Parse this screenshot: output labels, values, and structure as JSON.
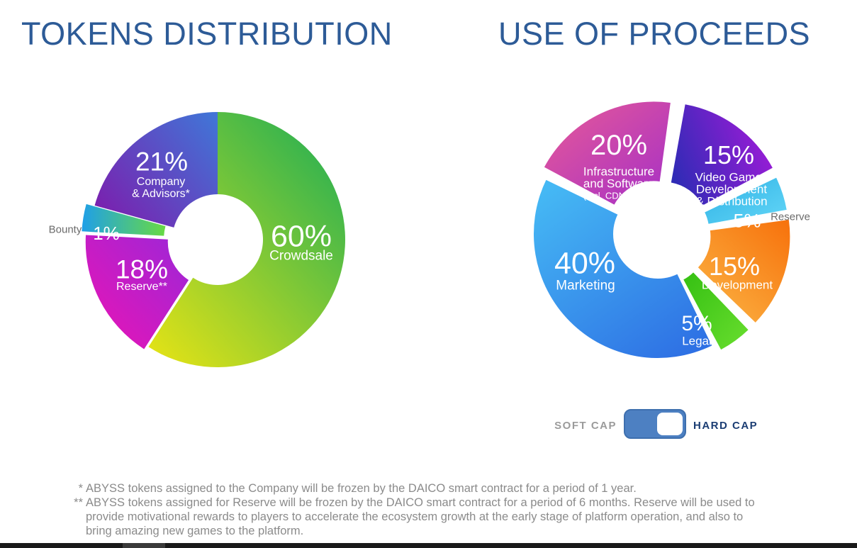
{
  "page": {
    "background": "#ffffff",
    "bottom_bar_color": "#191919",
    "bottom_bar_thumb_color": "#3a3a3a"
  },
  "titles": {
    "left": "TOKENS DISTRIBUTION",
    "right": "USE OF PROCEEDS",
    "color": "#2d5b97"
  },
  "toggle": {
    "soft_label": "SOFT CAP",
    "hard_label": "HARD CAP",
    "selected": "HARD CAP",
    "track_color": "#4d80c2",
    "track_border": "#3e6fae",
    "soft_label_color": "#9b9b9b",
    "hard_label_color": "#1b3d73"
  },
  "footnotes": [
    {
      "marker": "*",
      "text": "ABYSS tokens assigned to the Company will be frozen by the DAICO smart contract for a period of 1 year."
    },
    {
      "marker": "**",
      "text": "ABYSS tokens assigned for Reserve will be frozen by the DAICO smart contract for a period of 6 months. Reserve will be used to provide motivational rewards to players to accelerate the ecosystem growth at the early stage of platform operation, and also to bring amazing new games to the platform."
    }
  ],
  "chart_data": [
    {
      "type": "pie",
      "id": "tokens-distribution",
      "title": "TOKENS DISTRIBUTION",
      "donut": true,
      "legend_position": "inside",
      "start_angle": 0,
      "inner_radius": 64,
      "outer_radius": 180,
      "gap_deg": 0,
      "categories": [
        "Crowdsale",
        "Reserve**",
        "Bounty",
        "Company & Advisors*"
      ],
      "values": [
        60,
        18,
        1,
        21
      ],
      "slices": [
        {
          "id": "crowdsale",
          "label": "Crowdsale",
          "value": 60,
          "explode": 0,
          "visual_weight": 60,
          "gradient": {
            "from": "#e9e414",
            "to": "#27b053",
            "x1": 0,
            "y1": 1,
            "x2": 0.85,
            "y2": 0
          },
          "pct_pos": [
            328,
            206
          ],
          "pct_size": 43,
          "lines": [
            {
              "t": "Crowdsale",
              "s": 19
            }
          ],
          "lines_pos": [
            328,
            233
          ],
          "line_h": 20
        },
        {
          "id": "reserve",
          "label": "Reserve**",
          "value": 18,
          "explode": 7,
          "visual_weight": 17,
          "gradient": {
            "from": "#ec13b4",
            "to": "#9b27d8",
            "x1": 0,
            "y1": 1,
            "x2": 1,
            "y2": 0
          },
          "pct_pos": [
            103,
            252
          ],
          "pct_size": 37,
          "lines": [
            {
              "t": "Reserve**",
              "s": 16
            }
          ],
          "lines_pos": [
            103,
            277
          ],
          "line_h": 18
        },
        {
          "id": "bounty",
          "label": "Bounty",
          "value": 1,
          "explode": 12,
          "visual_weight": 3.5,
          "gradient": {
            "from": "#1f9fe8",
            "to": "#68da43",
            "x1": 0,
            "y1": 0.5,
            "x2": 1,
            "y2": 0.5
          },
          "pct_pos": [
            53,
            201
          ],
          "pct_size": 26,
          "outside": {
            "t": "Bounty",
            "s": 15,
            "pos": [
              -5,
              196
            ],
            "color": "#6b6b6b"
          }
        },
        {
          "id": "company-advisors",
          "label": "Company & Advisors*",
          "value": 21,
          "explode": 0,
          "visual_weight": 21,
          "gradient": {
            "from": "#7b1fae",
            "to": "#4273d6",
            "x1": 0,
            "y1": 0.85,
            "x2": 1,
            "y2": 0.1
          },
          "pct_pos": [
            131,
            100
          ],
          "pct_size": 37,
          "lines": [
            {
              "t": "Company",
              "s": 16
            },
            {
              "t": "& Advisors*",
              "s": 16
            }
          ],
          "lines_pos": [
            130,
            129
          ],
          "line_h": 17
        }
      ]
    },
    {
      "type": "pie",
      "id": "use-of-proceeds",
      "title": "USE OF PROCEEDS",
      "donut": true,
      "legend_position": "inside",
      "start_angle": 9,
      "inner_radius": 63,
      "outer_radius": 175,
      "gap_deg": 1.2,
      "categories": [
        "Video Games Development & Distribution",
        "Reserve",
        "Development",
        "Legal",
        "Marketing",
        "Infrastructure and Software (incl. CDN, DRM)"
      ],
      "values": [
        15,
        5,
        15,
        5,
        40,
        20
      ],
      "slices": [
        {
          "id": "video-games",
          "label": "Video Games Development & Distribution",
          "value": 15,
          "explode": 13,
          "gradient": {
            "from": "#2e2bb5",
            "to": "#a01bd8",
            "x1": 0,
            "y1": 0.7,
            "x2": 1,
            "y2": 0.3
          },
          "pct_pos": [
            310,
            99
          ],
          "pct_size": 36,
          "lines": [
            {
              "t": "Video Games",
              "s": 17
            },
            {
              "t": "Development",
              "s": 17
            },
            {
              "t": "& Distribution",
              "s": 17
            }
          ],
          "lines_pos": [
            314,
            130
          ],
          "line_h": 17
        },
        {
          "id": "reserve",
          "label": "Reserve",
          "value": 5,
          "explode": 10,
          "gradient": {
            "from": "#2fb2e5",
            "to": "#63d6f7",
            "x1": 0,
            "y1": 0,
            "x2": 1,
            "y2": 1
          },
          "pct_pos": [
            336,
            192
          ],
          "pct_size": 27,
          "outside": {
            "t": "Reserve",
            "s": 15,
            "pos": [
              397,
              186
            ],
            "color": "#6b6b6b"
          }
        },
        {
          "id": "development",
          "label": "Development",
          "value": 15,
          "explode": 12,
          "gradient": {
            "from": "#f7740e",
            "to": "#fbb343",
            "x1": 0.9,
            "y1": 0,
            "x2": 0.1,
            "y2": 1
          },
          "pct_pos": [
            318,
            256
          ],
          "pct_size": 36,
          "lines": [
            {
              "t": "Development",
              "s": 17
            }
          ],
          "lines_pos": [
            322,
            282
          ],
          "line_h": 18
        },
        {
          "id": "legal",
          "label": "Legal",
          "value": 5,
          "explode": 11,
          "gradient": {
            "from": "#35c013",
            "to": "#69de2e",
            "x1": 0,
            "y1": 0,
            "x2": 1,
            "y2": 1
          },
          "pct_pos": [
            265,
            337
          ],
          "pct_size": 30,
          "lines": [
            {
              "t": "Legal",
              "s": 17
            }
          ],
          "lines_pos": [
            265,
            361
          ],
          "line_h": 18
        },
        {
          "id": "marketing",
          "label": "Marketing",
          "value": 40,
          "explode": 0,
          "gradient": {
            "from": "#45b8f4",
            "to": "#2e70e4",
            "x1": 0.15,
            "y1": 0,
            "x2": 0.85,
            "y2": 1
          },
          "pct_pos": [
            107,
            252
          ],
          "pct_size": 43,
          "lines": [
            {
              "t": "Marketing",
              "s": 19
            }
          ],
          "lines_pos": [
            108,
            283
          ],
          "line_h": 20
        },
        {
          "id": "infrastructure-software",
          "label": "Infrastructure and Software (incl. CDN, DRM)",
          "value": 20,
          "explode": 13,
          "gradient": {
            "from": "#e85a97",
            "to": "#a52fc7",
            "x1": 0,
            "y1": 0,
            "x2": 1,
            "y2": 1
          },
          "pct_pos": [
            155,
            85
          ],
          "pct_size": 40,
          "lines": [
            {
              "t": "Infrastructure",
              "s": 17
            },
            {
              "t": "and Software",
              "s": 17
            },
            {
              "t": "(incl. CDN, DRM)",
              "s": 13
            }
          ],
          "lines_pos": [
            155,
            122
          ],
          "line_h": 17
        }
      ]
    }
  ]
}
